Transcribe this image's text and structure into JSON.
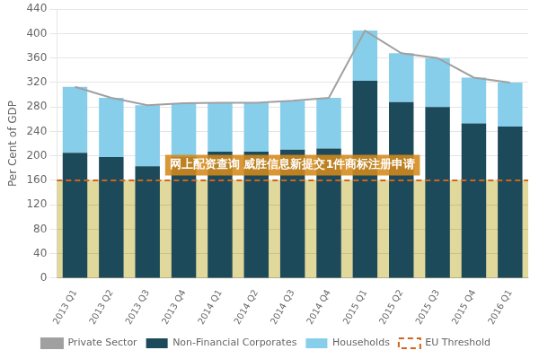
{
  "chart_data": {
    "type": "bar",
    "categories": [
      "2013 Q1",
      "2013 Q2",
      "2013 Q3",
      "2013 Q4",
      "2014 Q1",
      "2014 Q2",
      "2014 Q3",
      "2014 Q4",
      "2015 Q1",
      "2015 Q2",
      "2015 Q3",
      "2015 Q4",
      "2016 Q1"
    ],
    "series": [
      {
        "name": "Non-Financial Corporates",
        "type": "bar",
        "color": "#1c4a5a",
        "values": [
          205,
          198,
          183,
          198,
          207,
          207,
          210,
          212,
          323,
          288,
          280,
          253,
          248
        ]
      },
      {
        "name": "Households",
        "type": "bar",
        "color": "#87ceeb",
        "values": [
          108,
          97,
          100,
          88,
          80,
          80,
          80,
          83,
          82,
          80,
          80,
          75,
          72
        ]
      },
      {
        "name": "Private Sector",
        "type": "line",
        "color": "#a0a0a0",
        "values": [
          313,
          295,
          283,
          286,
          287,
          287,
          290,
          295,
          405,
          368,
          360,
          328,
          320
        ]
      }
    ],
    "reference_lines": [
      {
        "name": "EU Threshold",
        "value": 160,
        "color": "#d4631a",
        "line_style": "dashed"
      }
    ],
    "shaded_band": {
      "from": 0,
      "to": 160,
      "color": "#c8b84a"
    },
    "annotations": [
      {
        "text": "网上配资查询 威胜信息新提交1件商标注册申请"
      }
    ],
    "ylabel": "Per Cent of GDP",
    "ylim": [
      0,
      440
    ],
    "yticks": [
      0,
      40,
      80,
      120,
      160,
      200,
      240,
      280,
      320,
      360,
      400,
      440
    ],
    "stacked": true,
    "grid": true,
    "legend": "bottom"
  }
}
